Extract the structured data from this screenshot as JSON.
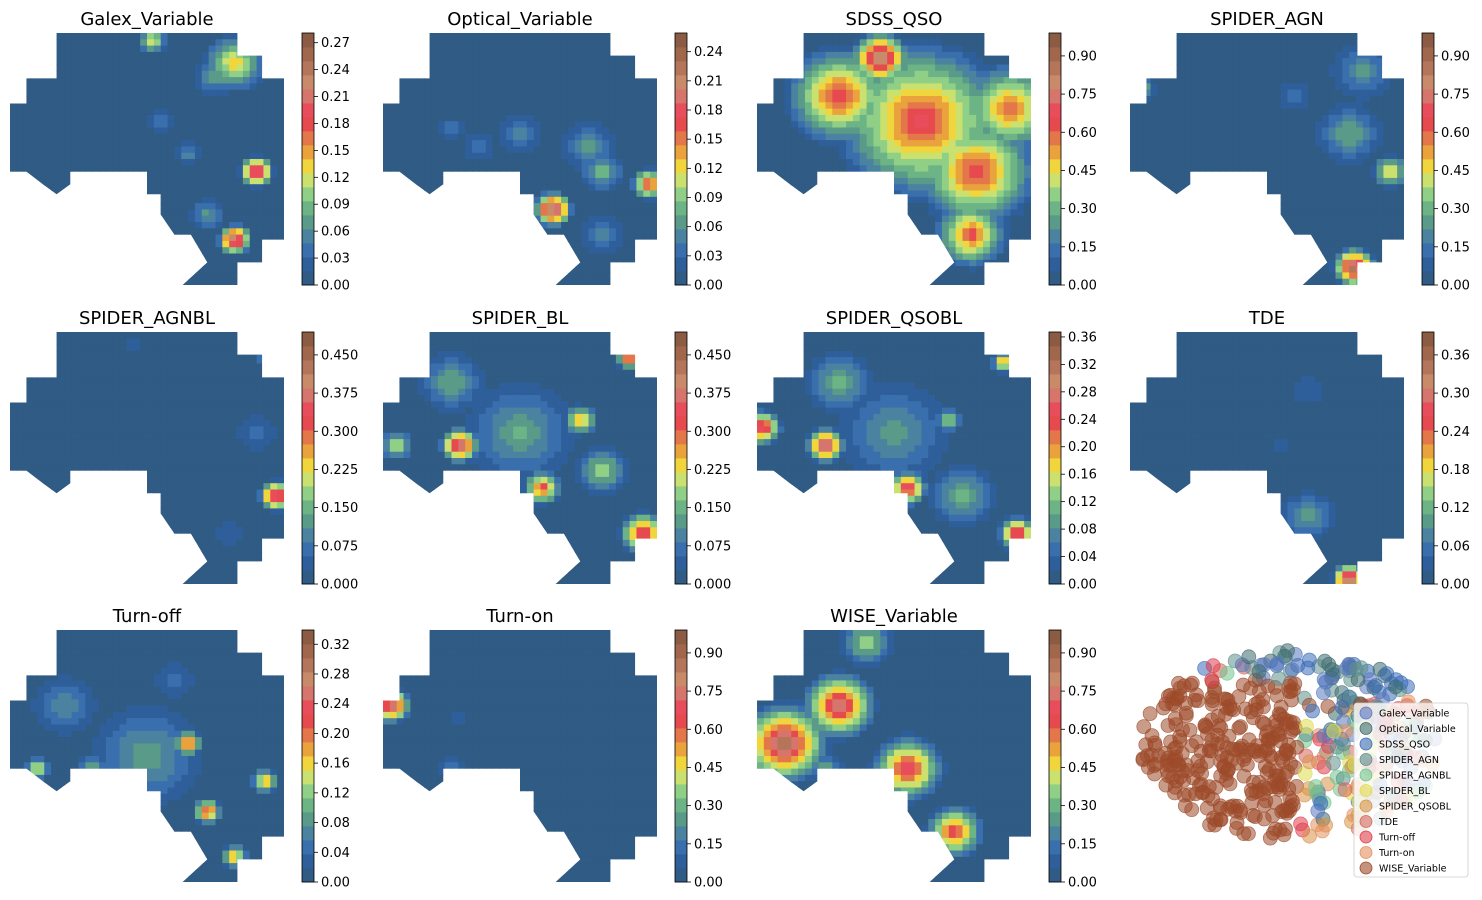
{
  "figure": {
    "background": "#ffffff",
    "colormap": [
      "#2f5b84",
      "#2f5f9a",
      "#3a6fae",
      "#4a82a0",
      "#5a9a88",
      "#6cb386",
      "#8fcf86",
      "#cbe16f",
      "#f0d53c",
      "#eaa33c",
      "#e4774a",
      "#e64a4f",
      "#e84d5c",
      "#d5756c",
      "#c98a6a",
      "#b4755a",
      "#a0674c",
      "#8c5b44"
    ]
  },
  "chart_data": [
    {
      "type": "heatmap",
      "title": "Galex_Variable",
      "colorbar_ticks": [
        "0.00",
        "0.03",
        "0.06",
        "0.09",
        "0.12",
        "0.15",
        "0.18",
        "0.21",
        "0.24",
        "0.27"
      ],
      "vmax_fraction_of_top_tick": 1.04,
      "hotspots": [
        {
          "x": 0.9,
          "y": 0.55,
          "v": 0.27,
          "r": 0.07
        },
        {
          "x": 0.82,
          "y": 0.12,
          "v": 0.15,
          "r": 0.13
        },
        {
          "x": 0.75,
          "y": 0.17,
          "v": 0.08,
          "r": 0.1
        },
        {
          "x": 0.82,
          "y": 0.82,
          "v": 0.27,
          "r": 0.07
        },
        {
          "x": 0.72,
          "y": 0.72,
          "v": 0.08,
          "r": 0.08
        },
        {
          "x": 0.52,
          "y": 0.03,
          "v": 0.15,
          "r": 0.06
        },
        {
          "x": 0.65,
          "y": 0.48,
          "v": 0.07,
          "r": 0.06
        },
        {
          "x": 0.55,
          "y": 0.35,
          "v": 0.06,
          "r": 0.06
        },
        {
          "x": 0.35,
          "y": 0.6,
          "v": 0.05,
          "r": 0.05
        }
      ]
    },
    {
      "type": "heatmap",
      "title": "Optical_Variable",
      "colorbar_ticks": [
        "0.00",
        "0.03",
        "0.06",
        "0.09",
        "0.12",
        "0.15",
        "0.18",
        "0.21",
        "0.24"
      ],
      "vmax_fraction_of_top_tick": 1.08,
      "hotspots": [
        {
          "x": 0.62,
          "y": 0.7,
          "v": 0.26,
          "r": 0.08
        },
        {
          "x": 0.97,
          "y": 0.6,
          "v": 0.2,
          "r": 0.07
        },
        {
          "x": 0.8,
          "y": 0.55,
          "v": 0.1,
          "r": 0.09
        },
        {
          "x": 0.75,
          "y": 0.45,
          "v": 0.07,
          "r": 0.12
        },
        {
          "x": 0.5,
          "y": 0.4,
          "v": 0.06,
          "r": 0.1
        },
        {
          "x": 0.25,
          "y": 0.38,
          "v": 0.05,
          "r": 0.06
        },
        {
          "x": 0.35,
          "y": 0.45,
          "v": 0.05,
          "r": 0.08
        },
        {
          "x": 0.8,
          "y": 0.8,
          "v": 0.06,
          "r": 0.1
        }
      ]
    },
    {
      "type": "heatmap",
      "title": "SDSS_QSO",
      "colorbar_ticks": [
        "0.00",
        "0.15",
        "0.30",
        "0.45",
        "0.60",
        "0.75",
        "0.90"
      ],
      "vmax_fraction_of_top_tick": 1.1,
      "hotspots": [
        {
          "x": 0.45,
          "y": 0.1,
          "v": 0.95,
          "r": 0.12
        },
        {
          "x": 0.6,
          "y": 0.35,
          "v": 0.72,
          "r": 0.35
        },
        {
          "x": 0.3,
          "y": 0.25,
          "v": 0.7,
          "r": 0.22
        },
        {
          "x": 0.8,
          "y": 0.55,
          "v": 0.7,
          "r": 0.25
        },
        {
          "x": 0.78,
          "y": 0.8,
          "v": 0.68,
          "r": 0.15
        },
        {
          "x": 0.92,
          "y": 0.3,
          "v": 0.65,
          "r": 0.2
        }
      ]
    },
    {
      "type": "heatmap",
      "title": "SPIDER_AGN",
      "colorbar_ticks": [
        "0.00",
        "0.15",
        "0.30",
        "0.45",
        "0.60",
        "0.75",
        "0.90"
      ],
      "vmax_fraction_of_top_tick": 1.1,
      "hotspots": [
        {
          "x": 0.82,
          "y": 0.93,
          "v": 0.95,
          "r": 0.09
        },
        {
          "x": 0.95,
          "y": 0.55,
          "v": 0.5,
          "r": 0.08
        },
        {
          "x": 0.8,
          "y": 0.4,
          "v": 0.3,
          "r": 0.15
        },
        {
          "x": 0.85,
          "y": 0.15,
          "v": 0.25,
          "r": 0.15
        },
        {
          "x": 0.05,
          "y": 0.22,
          "v": 0.3,
          "r": 0.06
        },
        {
          "x": 0.6,
          "y": 0.25,
          "v": 0.15,
          "r": 0.1
        }
      ]
    },
    {
      "type": "heatmap",
      "title": "SPIDER_AGNBL",
      "colorbar_ticks": [
        "0.000",
        "0.075",
        "0.150",
        "0.225",
        "0.300",
        "0.375",
        "0.450"
      ],
      "vmax_fraction_of_top_tick": 1.1,
      "hotspots": [
        {
          "x": 0.98,
          "y": 0.1,
          "v": 0.5,
          "r": 0.08
        },
        {
          "x": 0.97,
          "y": 0.65,
          "v": 0.45,
          "r": 0.07
        },
        {
          "x": 0.9,
          "y": 0.4,
          "v": 0.08,
          "r": 0.1
        },
        {
          "x": 0.8,
          "y": 0.8,
          "v": 0.06,
          "r": 0.08
        },
        {
          "x": 0.45,
          "y": 0.05,
          "v": 0.06,
          "r": 0.05
        }
      ]
    },
    {
      "type": "heatmap",
      "title": "SPIDER_BL",
      "colorbar_ticks": [
        "0.000",
        "0.075",
        "0.150",
        "0.225",
        "0.300",
        "0.375",
        "0.450"
      ],
      "vmax_fraction_of_top_tick": 1.1,
      "hotspots": [
        {
          "x": 0.28,
          "y": 0.45,
          "v": 0.45,
          "r": 0.08
        },
        {
          "x": 0.72,
          "y": 0.35,
          "v": 0.3,
          "r": 0.07
        },
        {
          "x": 0.58,
          "y": 0.62,
          "v": 0.35,
          "r": 0.08
        },
        {
          "x": 0.95,
          "y": 0.8,
          "v": 0.4,
          "r": 0.1
        },
        {
          "x": 0.25,
          "y": 0.2,
          "v": 0.15,
          "r": 0.15
        },
        {
          "x": 0.5,
          "y": 0.4,
          "v": 0.15,
          "r": 0.25
        },
        {
          "x": 0.8,
          "y": 0.55,
          "v": 0.2,
          "r": 0.12
        },
        {
          "x": 0.9,
          "y": 0.1,
          "v": 0.4,
          "r": 0.06
        },
        {
          "x": 0.05,
          "y": 0.45,
          "v": 0.25,
          "r": 0.07
        }
      ]
    },
    {
      "type": "heatmap",
      "title": "SPIDER_QSOBL",
      "colorbar_ticks": [
        "0.00",
        "0.04",
        "0.08",
        "0.12",
        "0.16",
        "0.20",
        "0.24",
        "0.28",
        "0.32",
        "0.36"
      ],
      "vmax_fraction_of_top_tick": 1.02,
      "hotspots": [
        {
          "x": 0.25,
          "y": 0.45,
          "v": 0.35,
          "r": 0.08
        },
        {
          "x": 0.02,
          "y": 0.38,
          "v": 0.3,
          "r": 0.08
        },
        {
          "x": 0.55,
          "y": 0.62,
          "v": 0.3,
          "r": 0.08
        },
        {
          "x": 0.95,
          "y": 0.8,
          "v": 0.3,
          "r": 0.08
        },
        {
          "x": 0.3,
          "y": 0.2,
          "v": 0.12,
          "r": 0.15
        },
        {
          "x": 0.5,
          "y": 0.4,
          "v": 0.1,
          "r": 0.25
        },
        {
          "x": 0.75,
          "y": 0.65,
          "v": 0.12,
          "r": 0.15
        },
        {
          "x": 0.9,
          "y": 0.12,
          "v": 0.25,
          "r": 0.05
        },
        {
          "x": 0.7,
          "y": 0.35,
          "v": 0.15,
          "r": 0.06
        }
      ]
    },
    {
      "type": "heatmap",
      "title": "TDE",
      "colorbar_ticks": [
        "0.00",
        "0.06",
        "0.12",
        "0.18",
        "0.24",
        "0.30",
        "0.36"
      ],
      "vmax_fraction_of_top_tick": 1.1,
      "hotspots": [
        {
          "x": 0.8,
          "y": 0.98,
          "v": 0.4,
          "r": 0.07
        },
        {
          "x": 0.65,
          "y": 0.73,
          "v": 0.12,
          "r": 0.12
        },
        {
          "x": 0.65,
          "y": 0.23,
          "v": 0.04,
          "r": 0.12
        },
        {
          "x": 0.55,
          "y": 0.45,
          "v": 0.04,
          "r": 0.06
        },
        {
          "x": 0.83,
          "y": 0.45,
          "v": 0.03,
          "r": 0.04
        }
      ]
    },
    {
      "type": "heatmap",
      "title": "Turn-off",
      "colorbar_ticks": [
        "0.00",
        "0.04",
        "0.08",
        "0.12",
        "0.16",
        "0.20",
        "0.24",
        "0.28",
        "0.32"
      ],
      "vmax_fraction_of_top_tick": 1.06,
      "hotspots": [
        {
          "x": 0.03,
          "y": 0.1,
          "v": 0.32,
          "r": 0.06
        },
        {
          "x": 0.65,
          "y": 0.45,
          "v": 0.25,
          "r": 0.06
        },
        {
          "x": 0.72,
          "y": 0.72,
          "v": 0.25,
          "r": 0.06
        },
        {
          "x": 0.82,
          "y": 0.9,
          "v": 0.2,
          "r": 0.06
        },
        {
          "x": 0.93,
          "y": 0.6,
          "v": 0.2,
          "r": 0.06
        },
        {
          "x": 0.1,
          "y": 0.55,
          "v": 0.2,
          "r": 0.05
        },
        {
          "x": 0.3,
          "y": 0.55,
          "v": 0.12,
          "r": 0.07
        },
        {
          "x": 0.5,
          "y": 0.5,
          "v": 0.1,
          "r": 0.25
        },
        {
          "x": 0.2,
          "y": 0.3,
          "v": 0.08,
          "r": 0.15
        },
        {
          "x": 0.6,
          "y": 0.2,
          "v": 0.06,
          "r": 0.1
        }
      ]
    },
    {
      "type": "heatmap",
      "title": "Turn-on",
      "colorbar_ticks": [
        "0.00",
        "0.15",
        "0.30",
        "0.45",
        "0.60",
        "0.75",
        "0.90"
      ],
      "vmax_fraction_of_top_tick": 1.1,
      "hotspots": [
        {
          "x": 0.03,
          "y": 0.3,
          "v": 0.9,
          "r": 0.08
        },
        {
          "x": 0.25,
          "y": 0.55,
          "v": 0.15,
          "r": 0.08
        },
        {
          "x": 0.27,
          "y": 0.35,
          "v": 0.1,
          "r": 0.06
        },
        {
          "x": 0.6,
          "y": 0.4,
          "v": 0.05,
          "r": 0.1
        },
        {
          "x": 0.4,
          "y": 0.8,
          "v": 0.05,
          "r": 0.12
        }
      ]
    },
    {
      "type": "heatmap",
      "title": "WISE_Variable",
      "colorbar_ticks": [
        "0.00",
        "0.15",
        "0.30",
        "0.45",
        "0.60",
        "0.75",
        "0.90"
      ],
      "vmax_fraction_of_top_tick": 1.1,
      "hotspots": [
        {
          "x": 0.1,
          "y": 0.45,
          "v": 0.92,
          "r": 0.18
        },
        {
          "x": 0.3,
          "y": 0.3,
          "v": 0.85,
          "r": 0.15
        },
        {
          "x": 0.55,
          "y": 0.55,
          "v": 0.75,
          "r": 0.15
        },
        {
          "x": 0.72,
          "y": 0.8,
          "v": 0.72,
          "r": 0.12
        },
        {
          "x": 0.4,
          "y": 0.05,
          "v": 0.4,
          "r": 0.12
        },
        {
          "x": 0.25,
          "y": 0.55,
          "v": 0.3,
          "r": 0.08
        }
      ]
    },
    {
      "type": "scatter",
      "legend_position": "lower right",
      "legend": [
        {
          "name": "Galex_Variable",
          "color": "#5a78bf"
        },
        {
          "name": "Optical_Variable",
          "color": "#3e6b6f"
        },
        {
          "name": "SDSS_QSO",
          "color": "#3b6bb8"
        },
        {
          "name": "SPIDER_AGN",
          "color": "#5e8f8c"
        },
        {
          "name": "SPIDER_AGNBL",
          "color": "#6fc48d"
        },
        {
          "name": "SPIDER_BL",
          "color": "#dfdc4f"
        },
        {
          "name": "SPIDER_QSOBL",
          "color": "#d99148"
        },
        {
          "name": "TDE",
          "color": "#d9655d"
        },
        {
          "name": "Turn-off",
          "color": "#df3d4a"
        },
        {
          "name": "Turn-on",
          "color": "#e48f5e"
        },
        {
          "name": "WISE_Variable",
          "color": "#9c4a29"
        }
      ]
    }
  ]
}
